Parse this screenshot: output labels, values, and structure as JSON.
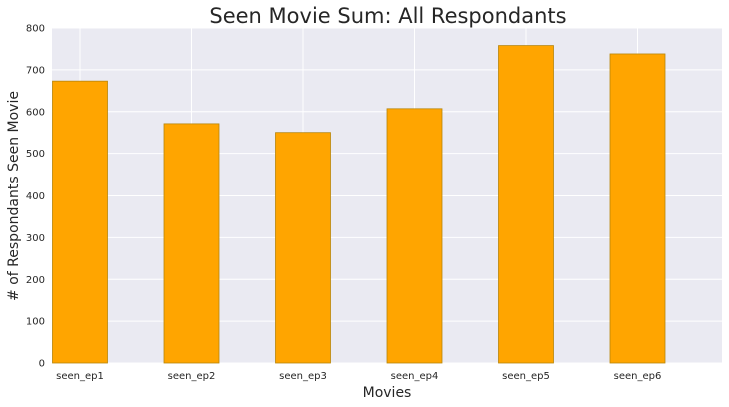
{
  "chart_data": {
    "type": "bar",
    "title": "Seen Movie Sum: All Respondants",
    "xlabel": "Movies",
    "ylabel": "# of Respondants Seen Movie",
    "categories": [
      "seen_ep1",
      "seen_ep2",
      "seen_ep3",
      "seen_ep4",
      "seen_ep5",
      "seen_ep6"
    ],
    "values": [
      673,
      571,
      550,
      607,
      758,
      738
    ],
    "ylim": [
      0,
      800
    ],
    "yticks": [
      "0",
      "100",
      "200",
      "300",
      "400",
      "500",
      "600",
      "700",
      "800"
    ],
    "grid": true,
    "legend": "none",
    "colors": {
      "bar_fill": "#FFA500",
      "bar_edge": "#B8860B",
      "plot_background": "#EAEAF2",
      "grid": "#FFFFFF"
    }
  }
}
